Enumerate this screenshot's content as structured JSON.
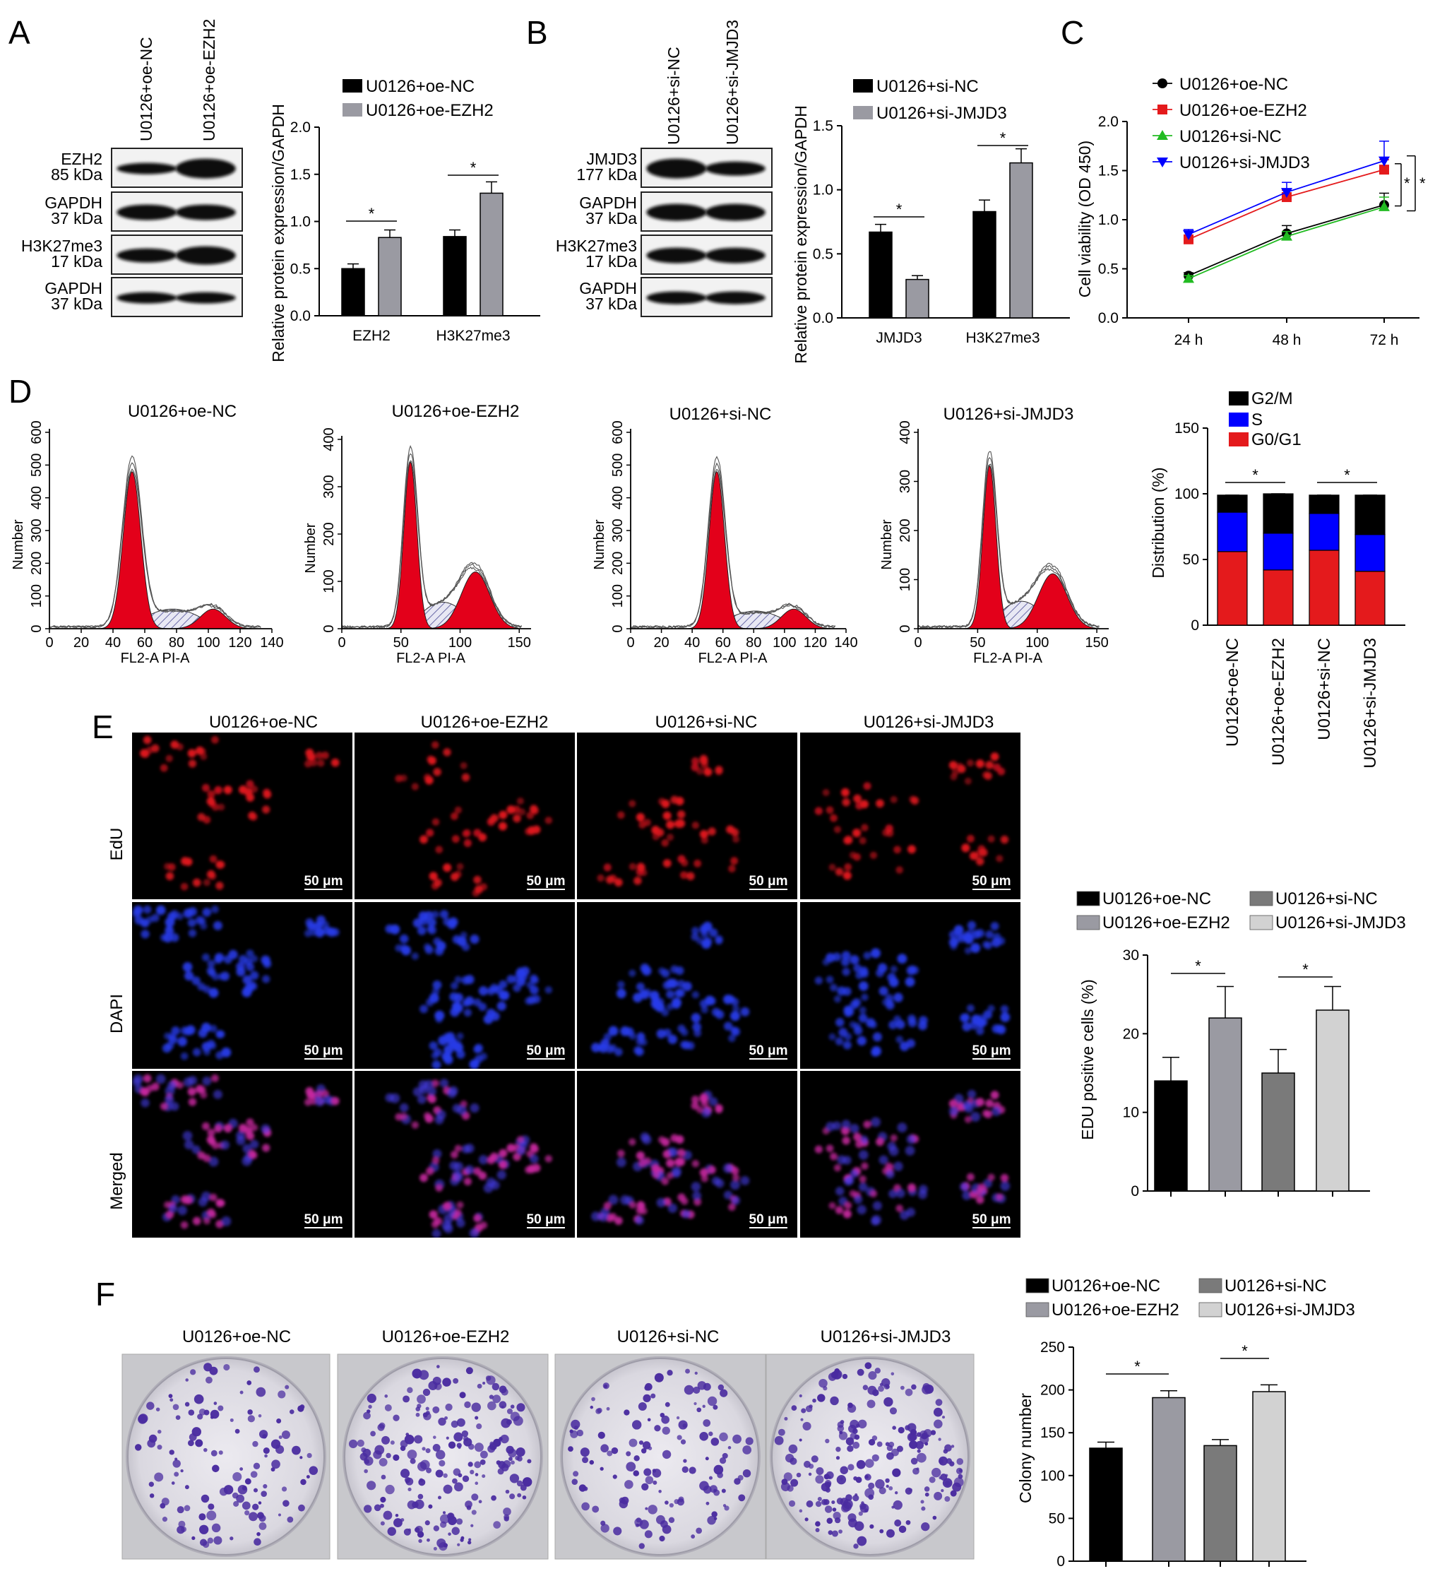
{
  "colors": {
    "black_bar": "#000000",
    "gray_bar": "#9a9aa2",
    "dark_gray_bar": "#7a7a7a",
    "light_gray_bar": "#d2d2d2",
    "red": "#e41a1c",
    "blue": "#0000ff",
    "green": "#22bb22",
    "histogram_red": "#e3001a",
    "edu_red": "#c8101a",
    "dapi_blue": "#1a28c8",
    "colony_purple": "#4a2ca0"
  },
  "panels": {
    "A": {
      "label": "A"
    },
    "B": {
      "label": "B"
    },
    "C": {
      "label": "C"
    },
    "D": {
      "label": "D"
    },
    "E": {
      "label": "E"
    },
    "F": {
      "label": "F"
    }
  },
  "blotA": {
    "lanes": [
      "U0126+oe-NC",
      "U0126+oe-EZH2"
    ],
    "rows": [
      {
        "name": "EZH2",
        "kda": "85 kDa"
      },
      {
        "name": "GAPDH",
        "kda": "37 kDa"
      },
      {
        "name": "H3K27me3",
        "kda": "17 kDa"
      },
      {
        "name": "GAPDH",
        "kda": "37 kDa"
      }
    ]
  },
  "blotB": {
    "lanes": [
      "U0126+si-NC",
      "U0126+si-JMJD3"
    ],
    "rows": [
      {
        "name": "JMJD3",
        "kda": "177 kDa"
      },
      {
        "name": "GAPDH",
        "kda": "37 kDa"
      },
      {
        "name": "H3K27me3",
        "kda": "17 kDa"
      },
      {
        "name": "GAPDH",
        "kda": "37 kDa"
      }
    ]
  },
  "histogram_groups": [
    "U0126+oe-NC",
    "U0126+oe-EZH2",
    "U0126+si-NC",
    "U0126+si-JMJD3"
  ],
  "histogram_x_ticks": [
    [
      "0",
      "20",
      "40",
      "60",
      "80",
      "100",
      "120",
      "140"
    ],
    [
      "0",
      "50",
      "100",
      "150"
    ],
    [
      "0",
      "20",
      "40",
      "60",
      "80",
      "100",
      "120",
      "140"
    ],
    [
      "0",
      "50",
      "100",
      "150"
    ]
  ],
  "histogram_y_ticks": [
    [
      "0",
      "100",
      "200",
      "300",
      "400",
      "500",
      "600"
    ],
    [
      "0",
      "100",
      "200",
      "300",
      "400"
    ],
    [
      "0",
      "100",
      "200",
      "300",
      "400",
      "500",
      "600"
    ],
    [
      "0",
      "100",
      "200",
      "300",
      "400"
    ]
  ],
  "histogram_x_label": "FL2-A PI-A",
  "histogram_y_label": "Number",
  "edu_columns": [
    "U0126+oe-NC",
    "U0126+oe-EZH2",
    "U0126+si-NC",
    "U0126+si-JMJD3"
  ],
  "edu_rows": [
    "EdU",
    "DAPI",
    "Merged"
  ],
  "scale_bar": "50 μm",
  "colony_columns": [
    "U0126+oe-NC",
    "U0126+oe-EZH2",
    "U0126+si-NC",
    "U0126+si-JMJD3"
  ],
  "significance": "*",
  "chart_data": [
    {
      "type": "bar",
      "panel": "A",
      "categories": [
        "EZH2",
        "H3K27me3"
      ],
      "series": [
        {
          "name": "U0126+oe-NC",
          "values": [
            0.5,
            0.84
          ],
          "errors": [
            0.05,
            0.07
          ]
        },
        {
          "name": "U0126+oe-EZH2",
          "values": [
            0.83,
            1.3
          ],
          "errors": [
            0.08,
            0.12
          ]
        }
      ],
      "ylabel": "Relative protein expression/GAPDH",
      "ylim": [
        0,
        2.0
      ],
      "yticks": [
        "0.0",
        "0.5",
        "1.0",
        "1.5",
        "2.0"
      ],
      "legend": "top"
    },
    {
      "type": "bar",
      "panel": "B",
      "categories": [
        "JMJD3",
        "H3K27me3"
      ],
      "series": [
        {
          "name": "U0126+si-NC",
          "values": [
            0.67,
            0.83
          ],
          "errors": [
            0.06,
            0.09
          ]
        },
        {
          "name": "U0126+si-JMJD3",
          "values": [
            0.3,
            1.21
          ],
          "errors": [
            0.03,
            0.11
          ]
        }
      ],
      "ylabel": "Relative protein expression/GAPDH",
      "ylim": [
        0,
        1.5
      ],
      "yticks": [
        "0.0",
        "0.5",
        "1.0",
        "1.5"
      ],
      "legend": "top"
    },
    {
      "type": "line",
      "panel": "C",
      "x": [
        "24 h",
        "48 h",
        "72 h"
      ],
      "series": [
        {
          "name": "U0126+oe-NC",
          "values": [
            0.43,
            0.86,
            1.15
          ],
          "marker": "circle"
        },
        {
          "name": "U0126+oe-EZH2",
          "values": [
            0.8,
            1.23,
            1.51
          ],
          "marker": "square"
        },
        {
          "name": "U0126+si-NC",
          "values": [
            0.4,
            0.83,
            1.13
          ],
          "marker": "triangle-up"
        },
        {
          "name": "U0126+si-JMJD3",
          "values": [
            0.85,
            1.28,
            1.6
          ],
          "marker": "triangle-down"
        }
      ],
      "ylabel": "Cell viability (OD 450)",
      "ylim": [
        0,
        2.0
      ],
      "yticks": [
        "0.0",
        "0.5",
        "1.0",
        "1.5",
        "2.0"
      ],
      "legend": "top-left"
    },
    {
      "type": "bar",
      "panel": "D",
      "stacked": true,
      "categories": [
        "U0126+oe-NC",
        "U0126+oe-EZH2",
        "U0126+si-NC",
        "U0126+si-JMJD3"
      ],
      "series": [
        {
          "name": "G0/G1",
          "values": [
            56,
            42,
            57,
            41
          ]
        },
        {
          "name": "S",
          "values": [
            30,
            28,
            28,
            28
          ]
        },
        {
          "name": "G2/M",
          "values": [
            13,
            30,
            14,
            30
          ]
        }
      ],
      "ylabel": "Distribution (%)",
      "ylim": [
        0,
        150
      ],
      "yticks": [
        "0",
        "50",
        "100",
        "150"
      ],
      "legend": "top"
    },
    {
      "type": "bar",
      "panel": "E",
      "categories": [
        "U0126+oe-NC",
        "U0126+oe-EZH2",
        "U0126+si-NC",
        "U0126+si-JMJD3"
      ],
      "values": [
        14,
        22,
        15,
        23
      ],
      "errors": [
        3,
        4,
        3,
        3
      ],
      "ylabel": "EDU positive cells (%)",
      "ylim": [
        0,
        30
      ],
      "yticks": [
        "0",
        "10",
        "20",
        "30"
      ],
      "legend": "top"
    },
    {
      "type": "bar",
      "panel": "F",
      "categories": [
        "U0126+oe-NC",
        "U0126+oe-EZH2",
        "U0126+si-NC",
        "U0126+si-JMJD3"
      ],
      "values": [
        132,
        191,
        135,
        198
      ],
      "errors": [
        7,
        8,
        7,
        8
      ],
      "ylabel": "Colony number",
      "ylim": [
        0,
        250
      ],
      "yticks": [
        "0",
        "50",
        "100",
        "150",
        "200",
        "250"
      ],
      "legend": "top"
    }
  ]
}
